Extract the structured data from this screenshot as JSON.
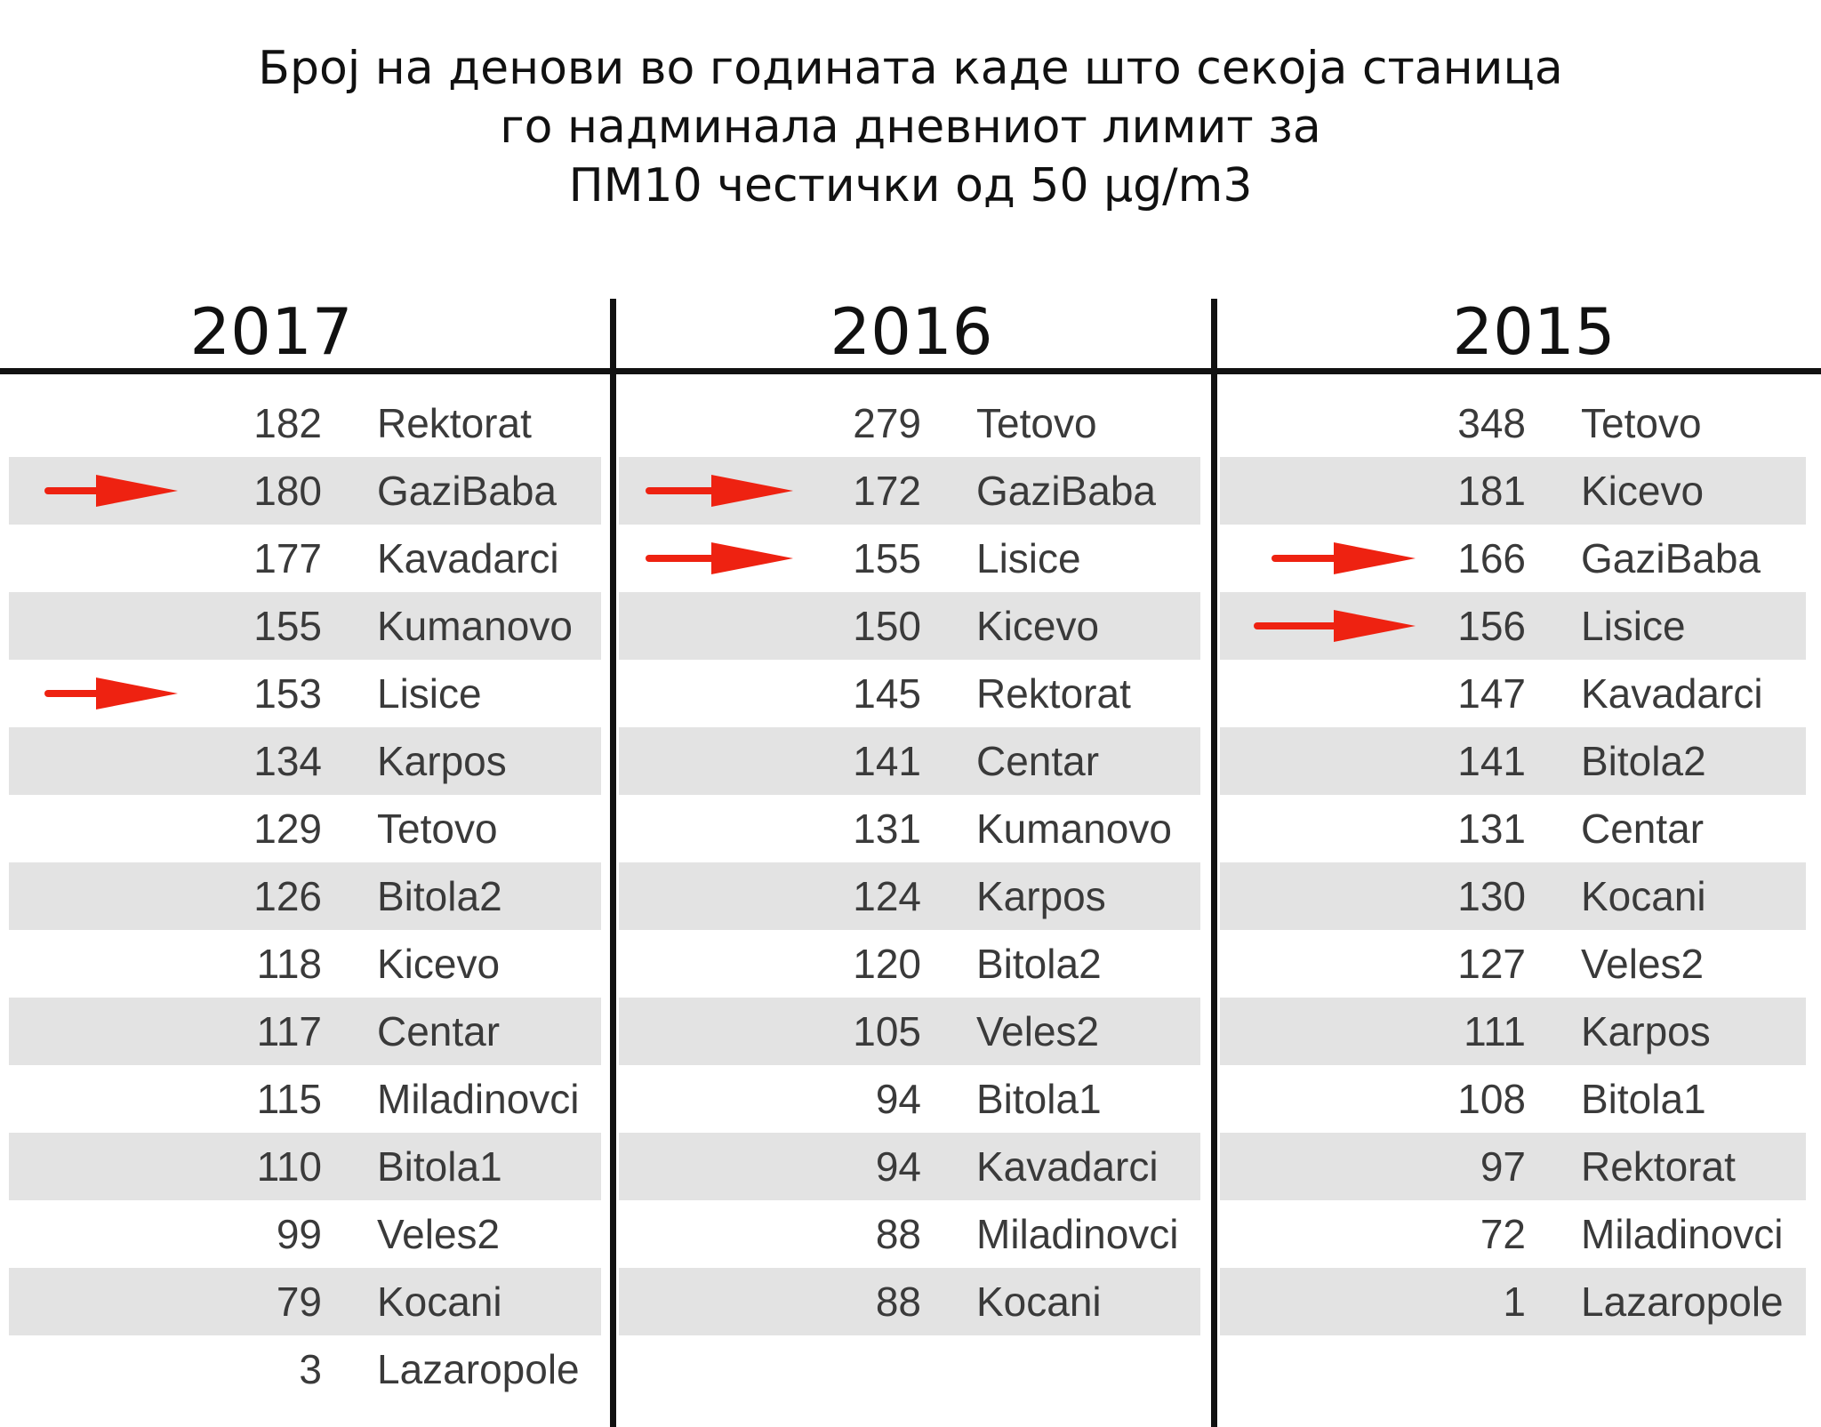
{
  "title_lines": [
    "Број на денови во годината каде што секоја станица",
    "го надминала дневниот лимит за",
    "ПМ10 честички од 50 µg/m3"
  ],
  "arrow_color": "#ee2211",
  "shade_color": "#e3e3e3",
  "chart_data": {
    "type": "table",
    "columns": [
      {
        "year": "2017",
        "rows": [
          {
            "value": 182,
            "station": "Rektorat"
          },
          {
            "value": 180,
            "station": "GaziBaba",
            "arrow": true
          },
          {
            "value": 177,
            "station": "Kavadarci"
          },
          {
            "value": 155,
            "station": "Kumanovo"
          },
          {
            "value": 153,
            "station": "Lisice",
            "arrow": true
          },
          {
            "value": 134,
            "station": "Karpos"
          },
          {
            "value": 129,
            "station": "Tetovo"
          },
          {
            "value": 126,
            "station": "Bitola2"
          },
          {
            "value": 118,
            "station": "Kicevo"
          },
          {
            "value": 117,
            "station": "Centar"
          },
          {
            "value": 115,
            "station": "Miladinovci"
          },
          {
            "value": 110,
            "station": "Bitola1"
          },
          {
            "value": 99,
            "station": "Veles2"
          },
          {
            "value": 79,
            "station": "Kocani"
          },
          {
            "value": 3,
            "station": "Lazaropole"
          }
        ]
      },
      {
        "year": "2016",
        "rows": [
          {
            "value": 279,
            "station": "Tetovo"
          },
          {
            "value": 172,
            "station": "GaziBaba",
            "arrow": true
          },
          {
            "value": 155,
            "station": "Lisice",
            "arrow": true
          },
          {
            "value": 150,
            "station": "Kicevo"
          },
          {
            "value": 145,
            "station": "Rektorat"
          },
          {
            "value": 141,
            "station": "Centar"
          },
          {
            "value": 131,
            "station": "Kumanovo"
          },
          {
            "value": 124,
            "station": "Karpos"
          },
          {
            "value": 120,
            "station": "Bitola2"
          },
          {
            "value": 105,
            "station": "Veles2"
          },
          {
            "value": 94,
            "station": "Bitola1"
          },
          {
            "value": 94,
            "station": "Kavadarci"
          },
          {
            "value": 88,
            "station": "Miladinovci"
          },
          {
            "value": 88,
            "station": "Kocani"
          }
        ]
      },
      {
        "year": "2015",
        "rows": [
          {
            "value": 348,
            "station": "Tetovo"
          },
          {
            "value": 181,
            "station": "Kicevo"
          },
          {
            "value": 166,
            "station": "GaziBaba",
            "arrow": true
          },
          {
            "value": 156,
            "station": "Lisice",
            "arrow": true
          },
          {
            "value": 147,
            "station": "Kavadarci"
          },
          {
            "value": 141,
            "station": "Bitola2"
          },
          {
            "value": 131,
            "station": "Centar"
          },
          {
            "value": 130,
            "station": "Kocani"
          },
          {
            "value": 127,
            "station": "Veles2"
          },
          {
            "value": 111,
            "station": "Karpos"
          },
          {
            "value": 108,
            "station": "Bitola1"
          },
          {
            "value": 97,
            "station": "Rektorat"
          },
          {
            "value": 72,
            "station": "Miladinovci"
          },
          {
            "value": 1,
            "station": "Lazaropole"
          }
        ]
      }
    ]
  }
}
